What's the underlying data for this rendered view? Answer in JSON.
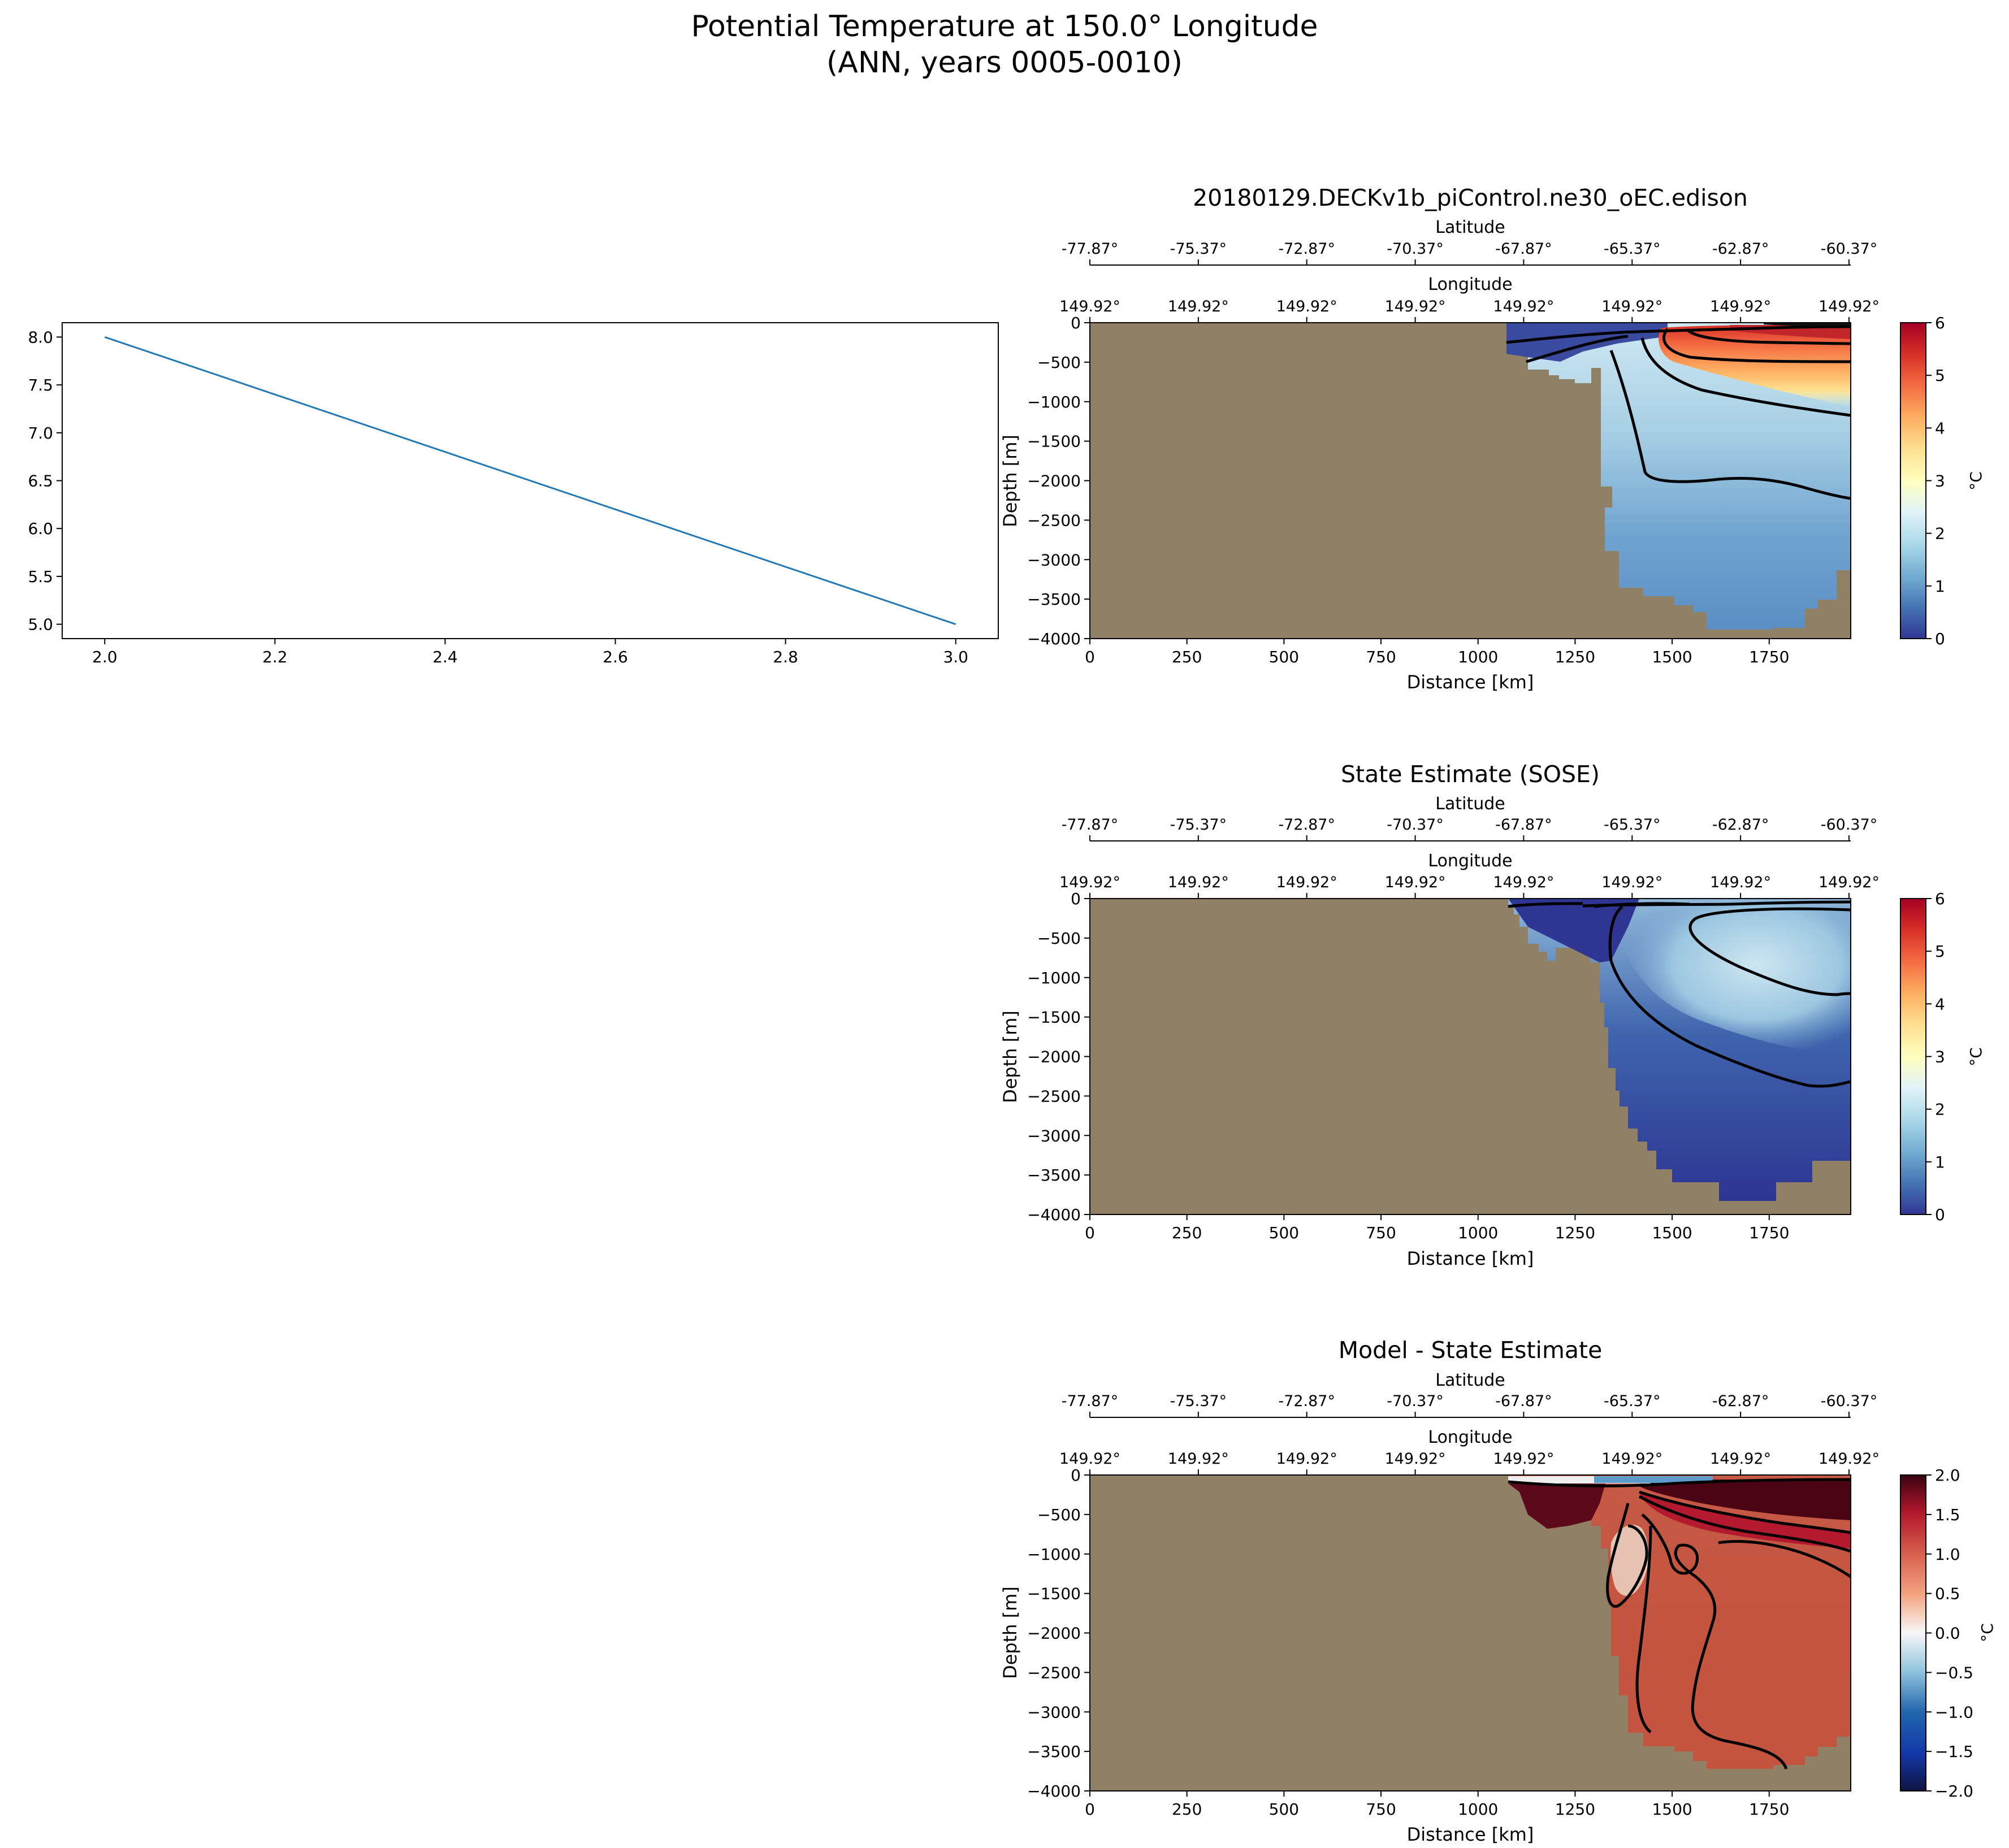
{
  "suptitle": {
    "line1": "Potential Temperature at 150.0° Longitude",
    "line2": "(ANN, years 0005-0010)"
  },
  "colors": {
    "land": "#8f8066",
    "line_series": "#1f77b4",
    "contour": "#000000"
  },
  "chart_data": [
    {
      "type": "line",
      "title": "",
      "xlabel": "",
      "ylabel": "",
      "x": [
        2.0,
        3.0
      ],
      "series": [
        {
          "values": [
            8.0,
            5.0
          ]
        }
      ],
      "xlim": [
        1.95,
        3.05
      ],
      "ylim": [
        4.85,
        8.15
      ],
      "xticks": [
        "2.0",
        "2.2",
        "2.4",
        "2.6",
        "2.8",
        "3.0"
      ],
      "yticks": [
        "5.0",
        "5.5",
        "6.0",
        "6.5",
        "7.0",
        "7.5",
        "8.0"
      ],
      "grid": false
    },
    {
      "type": "heatmap",
      "title": "20180129.DECKv1b_piControl.ne30_oEC.edison",
      "xlabel": "Distance [km]",
      "ylabel": "Depth [m]",
      "top_axis_1_label": "Latitude",
      "top_axis_1_ticks": [
        "-77.87°",
        "-75.37°",
        "-72.87°",
        "-70.37°",
        "-67.87°",
        "-65.37°",
        "-62.87°",
        "-60.37°"
      ],
      "top_axis_2_label": "Longitude",
      "top_axis_2_ticks": [
        "149.92°",
        "149.92°",
        "149.92°",
        "149.92°",
        "149.92°",
        "149.92°",
        "149.92°",
        "149.92°"
      ],
      "xticks": [
        "0",
        "250",
        "500",
        "750",
        "1000",
        "1250",
        "1500",
        "1750"
      ],
      "yticks": [
        "0",
        "−500",
        "−1000",
        "−1500",
        "−2000",
        "−2500",
        "−3000",
        "−3500",
        "−4000"
      ],
      "xlim": [
        0,
        1960
      ],
      "ylim": [
        -4000,
        0
      ],
      "colorbar": {
        "label": "°C",
        "ticks": [
          "0",
          "1",
          "2",
          "3",
          "4",
          "5",
          "6"
        ],
        "range": [
          0,
          6
        ],
        "colormap": "RdYlBu_r"
      }
    },
    {
      "type": "heatmap",
      "title": "State Estimate (SOSE)",
      "xlabel": "Distance [km]",
      "ylabel": "Depth [m]",
      "top_axis_1_label": "Latitude",
      "top_axis_1_ticks": [
        "-77.87°",
        "-75.37°",
        "-72.87°",
        "-70.37°",
        "-67.87°",
        "-65.37°",
        "-62.87°",
        "-60.37°"
      ],
      "top_axis_2_label": "Longitude",
      "top_axis_2_ticks": [
        "149.92°",
        "149.92°",
        "149.92°",
        "149.92°",
        "149.92°",
        "149.92°",
        "149.92°",
        "149.92°"
      ],
      "xticks": [
        "0",
        "250",
        "500",
        "750",
        "1000",
        "1250",
        "1500",
        "1750"
      ],
      "yticks": [
        "0",
        "−500",
        "−1000",
        "−1500",
        "−2000",
        "−2500",
        "−3000",
        "−3500",
        "−4000"
      ],
      "xlim": [
        0,
        1960
      ],
      "ylim": [
        -4000,
        0
      ],
      "colorbar": {
        "label": "°C",
        "ticks": [
          "0",
          "1",
          "2",
          "3",
          "4",
          "5",
          "6"
        ],
        "range": [
          0,
          6
        ],
        "colormap": "RdYlBu_r"
      }
    },
    {
      "type": "heatmap",
      "title": "Model - State Estimate",
      "xlabel": "Distance [km]",
      "ylabel": "Depth [m]",
      "top_axis_1_label": "Latitude",
      "top_axis_1_ticks": [
        "-77.87°",
        "-75.37°",
        "-72.87°",
        "-70.37°",
        "-67.87°",
        "-65.37°",
        "-62.87°",
        "-60.37°"
      ],
      "top_axis_2_label": "Longitude",
      "top_axis_2_ticks": [
        "149.92°",
        "149.92°",
        "149.92°",
        "149.92°",
        "149.92°",
        "149.92°",
        "149.92°",
        "149.92°"
      ],
      "xticks": [
        "0",
        "250",
        "500",
        "750",
        "1000",
        "1250",
        "1500",
        "1750"
      ],
      "yticks": [
        "0",
        "−500",
        "−1000",
        "−1500",
        "−2000",
        "−2500",
        "−3000",
        "−3500",
        "−4000"
      ],
      "xlim": [
        0,
        1960
      ],
      "ylim": [
        -4000,
        0
      ],
      "colorbar": {
        "label": "°C",
        "ticks": [
          "−2.0",
          "−1.5",
          "−1.0",
          "−0.5",
          "0.0",
          "0.5",
          "1.0",
          "1.5",
          "2.0"
        ],
        "range": [
          -2,
          2
        ],
        "colormap": "RdBu_r"
      }
    }
  ]
}
